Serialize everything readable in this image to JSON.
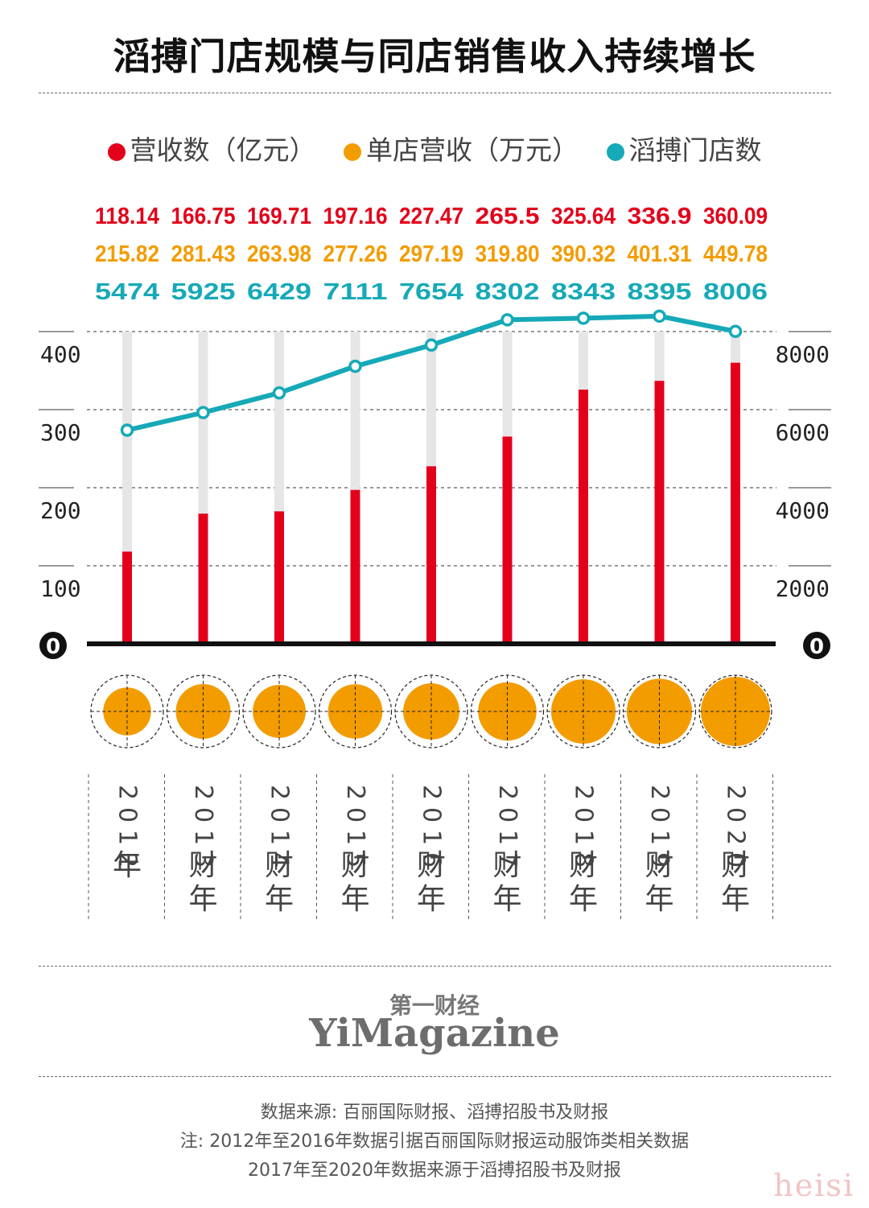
{
  "title": "滔搏门店规模与同店销售收入持续增长",
  "legend": [
    {
      "label": "营收数（亿元）",
      "color": "#e3001b"
    },
    {
      "label": "单店营收（万元）",
      "color": "#f39c00"
    },
    {
      "label": "滔搏门店数",
      "color": "#16a9b8"
    }
  ],
  "chart_data": {
    "type": "bar",
    "categories": [
      [
        "2",
        "0",
        "1",
        "2",
        "年"
      ],
      [
        "2",
        "0",
        "1",
        "3",
        "财",
        "年"
      ],
      [
        "2",
        "0",
        "1",
        "4",
        "财",
        "年"
      ],
      [
        "2",
        "0",
        "1",
        "5",
        "财",
        "年"
      ],
      [
        "2",
        "0",
        "1",
        "6",
        "财",
        "年"
      ],
      [
        "2",
        "0",
        "1",
        "7",
        "财",
        "年"
      ],
      [
        "2",
        "0",
        "1",
        "8",
        "财",
        "年"
      ],
      [
        "2",
        "0",
        "1",
        "9",
        "财",
        "年"
      ],
      [
        "2",
        "0",
        "2",
        "0",
        "财",
        "年"
      ]
    ],
    "series": [
      {
        "name": "营收数（亿元）",
        "type": "bar",
        "axis": "left",
        "color": "#e3001b",
        "values": [
          118.14,
          166.75,
          169.71,
          197.16,
          227.47,
          265.5,
          325.64,
          336.9,
          360.09
        ],
        "labels": [
          "118.14",
          "166.75",
          "169.71",
          "197.16",
          "227.47",
          "265.5",
          "325.64",
          "336.9",
          "360.09"
        ]
      },
      {
        "name": "单店营收（万元）",
        "type": "bubble",
        "color": "#f39c00",
        "values": [
          215.82,
          281.43,
          263.98,
          277.26,
          297.19,
          319.8,
          390.32,
          401.31,
          449.78
        ],
        "labels": [
          "215.82",
          "281.43",
          "263.98",
          "277.26",
          "297.19",
          "319.80",
          "390.32",
          "401.31",
          "449.78"
        ]
      },
      {
        "name": "滔搏门店数",
        "type": "line",
        "axis": "right",
        "color": "#16a9b8",
        "values": [
          5474,
          5925,
          6429,
          7111,
          7654,
          8302,
          8343,
          8395,
          8006
        ],
        "labels": [
          "5474",
          "5925",
          "6429",
          "7111",
          "7654",
          "8302",
          "8343",
          "8395",
          "8006"
        ]
      }
    ],
    "left_axis": {
      "ticks": [
        "0",
        "100",
        "200",
        "300",
        "400"
      ],
      "ylim": [
        0,
        400
      ]
    },
    "right_axis": {
      "ticks": [
        "0",
        "2000",
        "4000",
        "6000",
        "8000"
      ],
      "ylim": [
        0,
        8000
      ]
    },
    "grid": true
  },
  "footer": {
    "brand_cn": "第一财经",
    "brand_en": "YiMagazine",
    "source": "数据来源: 百丽国际财报、滔搏招股书及财报",
    "note1": "注: 2012年至2016年数据引据百丽国际财报运动服饰类相关数据",
    "note2": "2017年至2020年数据来源于滔搏招股书及财报"
  },
  "watermark": "heisi"
}
